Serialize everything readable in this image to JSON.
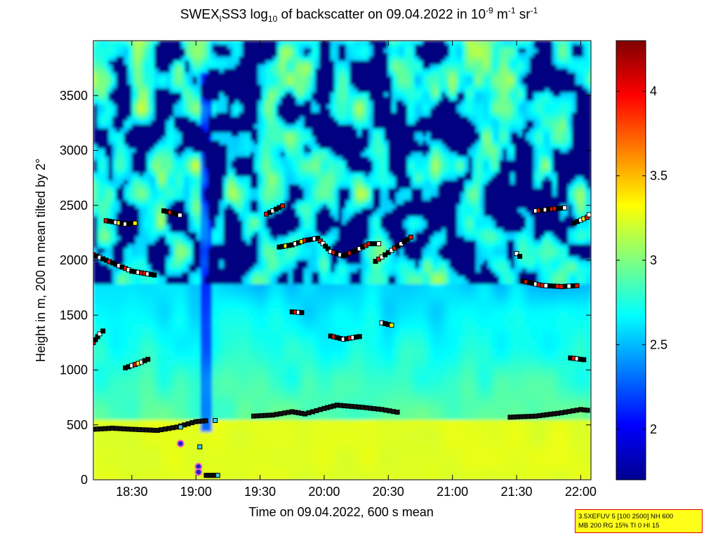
{
  "title": {
    "main": "SWEX",
    "sub1": "l",
    "mid": "SS3 log",
    "sub2": "10",
    "after": " of backscatter on 09.04.2022 in 10",
    "sup1": "-9",
    "unit1": " m",
    "sup2": "-1",
    "unit2": " sr",
    "sup3": "-1"
  },
  "info_box": {
    "line1": "3.5XEFUV 5 [100 2500] NH 600",
    "line2": "MB 200 RG 15% TI 0 HI 15"
  },
  "colors": {
    "cloud_marker_dark": "#000000",
    "cloud_marker_red": "#dd1100",
    "cloud_marker_white": "#ffffff",
    "cloud_marker_yellow": "#ffee00",
    "mixing_layer_marker": "#111111",
    "special_marker_cyan": "#3ec7e6",
    "special_marker_blue": "#2222cc"
  },
  "chart_data": {
    "type": "heatmap",
    "title": "SWEXlSS3 log10 of backscatter on 09.04.2022 in 10-9 m-1 sr-1",
    "xlabel": "Time on 09.04.2022, 600 s mean",
    "ylabel": "Height in m, 200 m mean tilted by 2°",
    "x_ticks": [
      "18:30",
      "19:00",
      "19:30",
      "20:00",
      "20:30",
      "21:00",
      "21:30",
      "22:00"
    ],
    "x_tick_hours": [
      18.5,
      19.0,
      19.5,
      20.0,
      20.5,
      21.0,
      21.5,
      22.0
    ],
    "xlim_hours": [
      18.2,
      22.08
    ],
    "y_ticks": [
      0,
      500,
      1000,
      1500,
      2000,
      2500,
      3000,
      3500
    ],
    "ylim": [
      0,
      4000
    ],
    "colorbar": {
      "ticks": [
        2,
        2.5,
        3,
        3.5,
        4
      ],
      "range": [
        1.7,
        4.3
      ],
      "colormap": "jet"
    },
    "layers": [
      {
        "name": "mixing_layer",
        "points": [
          [
            18.2,
            460
          ],
          [
            18.35,
            470
          ],
          [
            18.5,
            460
          ],
          [
            18.7,
            450
          ],
          [
            18.85,
            480
          ],
          [
            19.0,
            530
          ],
          [
            19.1,
            540
          ]
        ]
      },
      {
        "name": "mixing_layer",
        "points": [
          [
            19.45,
            580
          ],
          [
            19.6,
            590
          ],
          [
            19.75,
            620
          ],
          [
            19.85,
            600
          ],
          [
            20.0,
            650
          ],
          [
            20.1,
            680
          ],
          [
            20.3,
            660
          ],
          [
            20.45,
            640
          ],
          [
            20.6,
            610
          ]
        ]
      },
      {
        "name": "mixing_layer",
        "points": [
          [
            21.45,
            570
          ],
          [
            21.65,
            580
          ],
          [
            21.85,
            610
          ],
          [
            22.0,
            640
          ],
          [
            22.08,
            630
          ]
        ]
      }
    ],
    "cloud_bases": [
      {
        "points": [
          [
            18.2,
            2050
          ],
          [
            18.3,
            2000
          ],
          [
            18.4,
            1950
          ],
          [
            18.5,
            1900
          ],
          [
            18.6,
            1880
          ],
          [
            18.7,
            1860
          ]
        ]
      },
      {
        "points": [
          [
            18.3,
            2360
          ],
          [
            18.45,
            2330
          ],
          [
            18.55,
            2340
          ]
        ]
      },
      {
        "points": [
          [
            18.75,
            2450
          ],
          [
            18.85,
            2420
          ],
          [
            18.9,
            2400
          ]
        ]
      },
      {
        "points": [
          [
            19.55,
            2420
          ],
          [
            19.65,
            2480
          ],
          [
            19.7,
            2510
          ]
        ]
      },
      {
        "points": [
          [
            19.65,
            2120
          ],
          [
            19.75,
            2140
          ],
          [
            19.85,
            2180
          ],
          [
            19.95,
            2200
          ],
          [
            20.05,
            2080
          ],
          [
            20.15,
            2040
          ],
          [
            20.25,
            2090
          ],
          [
            20.35,
            2150
          ],
          [
            20.45,
            2150
          ]
        ]
      },
      {
        "points": [
          [
            20.4,
            1990
          ],
          [
            20.5,
            2070
          ],
          [
            20.6,
            2150
          ],
          [
            20.7,
            2230
          ]
        ]
      },
      {
        "points": [
          [
            19.75,
            1530
          ],
          [
            19.85,
            1520
          ]
        ]
      },
      {
        "points": [
          [
            20.05,
            1310
          ],
          [
            20.15,
            1280
          ],
          [
            20.3,
            1310
          ]
        ]
      },
      {
        "points": [
          [
            20.45,
            1430
          ],
          [
            20.55,
            1400
          ]
        ]
      },
      {
        "points": [
          [
            18.45,
            1020
          ],
          [
            18.55,
            1060
          ],
          [
            18.65,
            1110
          ]
        ]
      },
      {
        "points": [
          [
            21.5,
            2060
          ],
          [
            21.55,
            2010
          ]
        ]
      },
      {
        "points": [
          [
            21.55,
            1810
          ],
          [
            21.7,
            1770
          ],
          [
            21.85,
            1760
          ],
          [
            22.0,
            1770
          ]
        ]
      },
      {
        "points": [
          [
            21.65,
            2450
          ],
          [
            21.8,
            2470
          ],
          [
            21.9,
            2480
          ]
        ]
      },
      {
        "points": [
          [
            21.95,
            2340
          ],
          [
            22.05,
            2390
          ],
          [
            22.08,
            2440
          ]
        ]
      },
      {
        "points": [
          [
            21.92,
            1110
          ],
          [
            22.05,
            1090
          ]
        ]
      },
      {
        "points": [
          [
            18.2,
            1250
          ],
          [
            18.25,
            1330
          ],
          [
            18.3,
            1380
          ]
        ]
      }
    ]
  }
}
